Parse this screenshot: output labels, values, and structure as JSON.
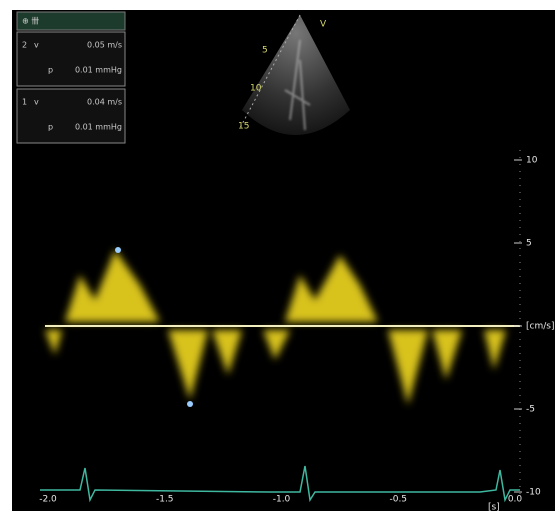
{
  "header": {
    "label": "⊕ 卌"
  },
  "measurements": [
    {
      "index": "2",
      "velocity_label": "v",
      "velocity": "0.05 m/s",
      "pressure_label": "p",
      "pressure": "0.01 mmHg"
    },
    {
      "index": "1",
      "velocity_label": "v",
      "velocity": "0.04 m/s",
      "pressure_label": "p",
      "pressure": "0.01 mmHg"
    }
  ],
  "sector": {
    "marker": "V",
    "depths": [
      "5",
      "10",
      "15"
    ]
  },
  "velocity_scale": {
    "ticks": [
      "10",
      "5",
      "[cm/s]",
      "-5",
      "-10"
    ]
  },
  "time_axis": {
    "ticks": [
      "-2.0",
      "-1.5",
      "-1.0",
      "-0.5",
      "0.0"
    ],
    "unit": "[s]"
  }
}
